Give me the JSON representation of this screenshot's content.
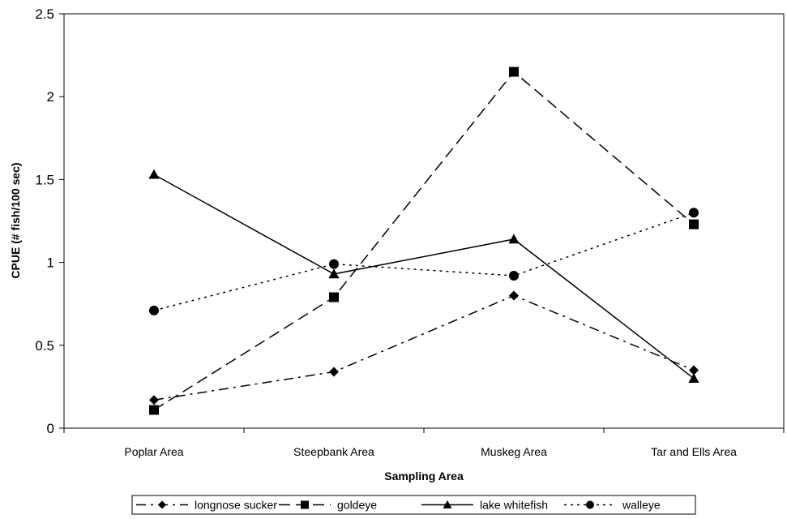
{
  "chart_data": {
    "type": "line",
    "title": "",
    "xlabel": "Sampling Area",
    "ylabel": "CPUE (# fish/100 sec)",
    "categories": [
      "Poplar Area",
      "Steepbank Area",
      "Muskeg Area",
      "Tar and Ells Area"
    ],
    "ylim": [
      0,
      2.5
    ],
    "yticks": [
      0,
      0.5,
      1,
      1.5,
      2,
      2.5
    ],
    "ytick_labels": [
      "0",
      "0.5",
      "1",
      "1.5",
      "2",
      "2.5"
    ],
    "grid": false,
    "legend_position": "bottom",
    "series": [
      {
        "name": "longnose sucker",
        "values": [
          0.17,
          0.34,
          0.8,
          0.35
        ],
        "marker": "diamond",
        "dash": "dash-dot"
      },
      {
        "name": "goldeye",
        "values": [
          0.11,
          0.79,
          2.15,
          1.23
        ],
        "marker": "square",
        "dash": "dash"
      },
      {
        "name": "lake whitefish",
        "values": [
          1.53,
          0.93,
          1.14,
          0.3
        ],
        "marker": "triangle",
        "dash": "solid"
      },
      {
        "name": "walleye",
        "values": [
          0.71,
          0.99,
          0.92,
          1.3
        ],
        "marker": "circle",
        "dash": "dot"
      }
    ],
    "colors": {
      "line": "#000000",
      "background": "#ffffff"
    }
  }
}
